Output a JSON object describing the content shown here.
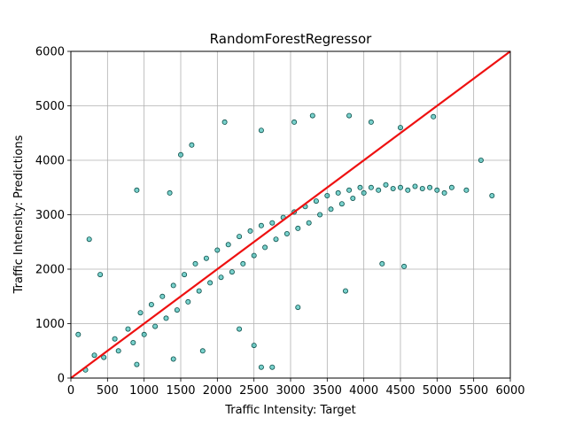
{
  "chart_data": {
    "type": "scatter",
    "title": "RandomForestRegressor",
    "xlabel": "Traffic Intensity: Target",
    "ylabel": "Traffic Intensity: Predictions",
    "xlim": [
      0,
      6000
    ],
    "ylim": [
      0,
      6000
    ],
    "xticks": [
      "0",
      "500",
      "1000",
      "1500",
      "2000",
      "2500",
      "3000",
      "3500",
      "4000",
      "4500",
      "5000",
      "5500",
      "6000"
    ],
    "yticks": [
      "0",
      "1000",
      "2000",
      "3000",
      "4000",
      "5000",
      "6000"
    ],
    "grid": true,
    "colors": {
      "point_fill": "#20b2aa",
      "point_edge": "#0b4f4a",
      "reference_line": "#ee1111"
    },
    "reference_line": {
      "x": [
        0,
        6000
      ],
      "y": [
        0,
        6000
      ]
    },
    "series": [
      {
        "points": [
          [
            200,
            150
          ],
          [
            320,
            420
          ],
          [
            450,
            380
          ],
          [
            600,
            720
          ],
          [
            650,
            500
          ],
          [
            780,
            900
          ],
          [
            850,
            650
          ],
          [
            950,
            1200
          ],
          [
            1000,
            800
          ],
          [
            1100,
            1350
          ],
          [
            1150,
            950
          ],
          [
            1250,
            1500
          ],
          [
            1300,
            1100
          ],
          [
            1400,
            1700
          ],
          [
            1450,
            1250
          ],
          [
            1550,
            1900
          ],
          [
            1600,
            1400
          ],
          [
            1700,
            2100
          ],
          [
            1750,
            1600
          ],
          [
            1850,
            2200
          ],
          [
            1900,
            1750
          ],
          [
            2000,
            2350
          ],
          [
            2050,
            1850
          ],
          [
            2150,
            2450
          ],
          [
            2200,
            1950
          ],
          [
            2300,
            2600
          ],
          [
            2350,
            2100
          ],
          [
            2450,
            2700
          ],
          [
            2500,
            2250
          ],
          [
            2600,
            2800
          ],
          [
            2650,
            2400
          ],
          [
            2750,
            2850
          ],
          [
            2800,
            2550
          ],
          [
            2900,
            2950
          ],
          [
            2950,
            2650
          ],
          [
            3050,
            3050
          ],
          [
            3100,
            2750
          ],
          [
            3200,
            3150
          ],
          [
            3250,
            2850
          ],
          [
            3350,
            3250
          ],
          [
            3400,
            3000
          ],
          [
            3500,
            3350
          ],
          [
            3550,
            3100
          ],
          [
            3650,
            3400
          ],
          [
            3700,
            3200
          ],
          [
            3800,
            3450
          ],
          [
            3850,
            3300
          ],
          [
            3950,
            3500
          ],
          [
            4000,
            3400
          ],
          [
            4100,
            3500
          ],
          [
            4200,
            3450
          ],
          [
            4300,
            3550
          ],
          [
            4400,
            3480
          ],
          [
            4500,
            3500
          ],
          [
            4600,
            3450
          ],
          [
            4700,
            3520
          ],
          [
            4800,
            3480
          ],
          [
            4900,
            3500
          ],
          [
            5000,
            3450
          ],
          [
            5100,
            3400
          ],
          [
            5200,
            3500
          ],
          [
            5400,
            3450
          ],
          [
            5600,
            4000
          ],
          [
            5750,
            3350
          ],
          [
            100,
            800
          ],
          [
            250,
            2550
          ],
          [
            400,
            1900
          ],
          [
            900,
            3450
          ],
          [
            1350,
            3400
          ],
          [
            1500,
            4100
          ],
          [
            1650,
            4280
          ],
          [
            2100,
            4700
          ],
          [
            2600,
            4550
          ],
          [
            3050,
            4700
          ],
          [
            3300,
            4820
          ],
          [
            3800,
            4820
          ],
          [
            4100,
            4700
          ],
          [
            4500,
            4600
          ],
          [
            4950,
            4800
          ],
          [
            2500,
            600
          ],
          [
            2600,
            200
          ],
          [
            2750,
            200
          ],
          [
            2300,
            900
          ],
          [
            3100,
            1300
          ],
          [
            3750,
            1600
          ],
          [
            4550,
            2050
          ],
          [
            4250,
            2100
          ],
          [
            1400,
            350
          ],
          [
            900,
            250
          ],
          [
            1800,
            500
          ]
        ]
      }
    ]
  }
}
